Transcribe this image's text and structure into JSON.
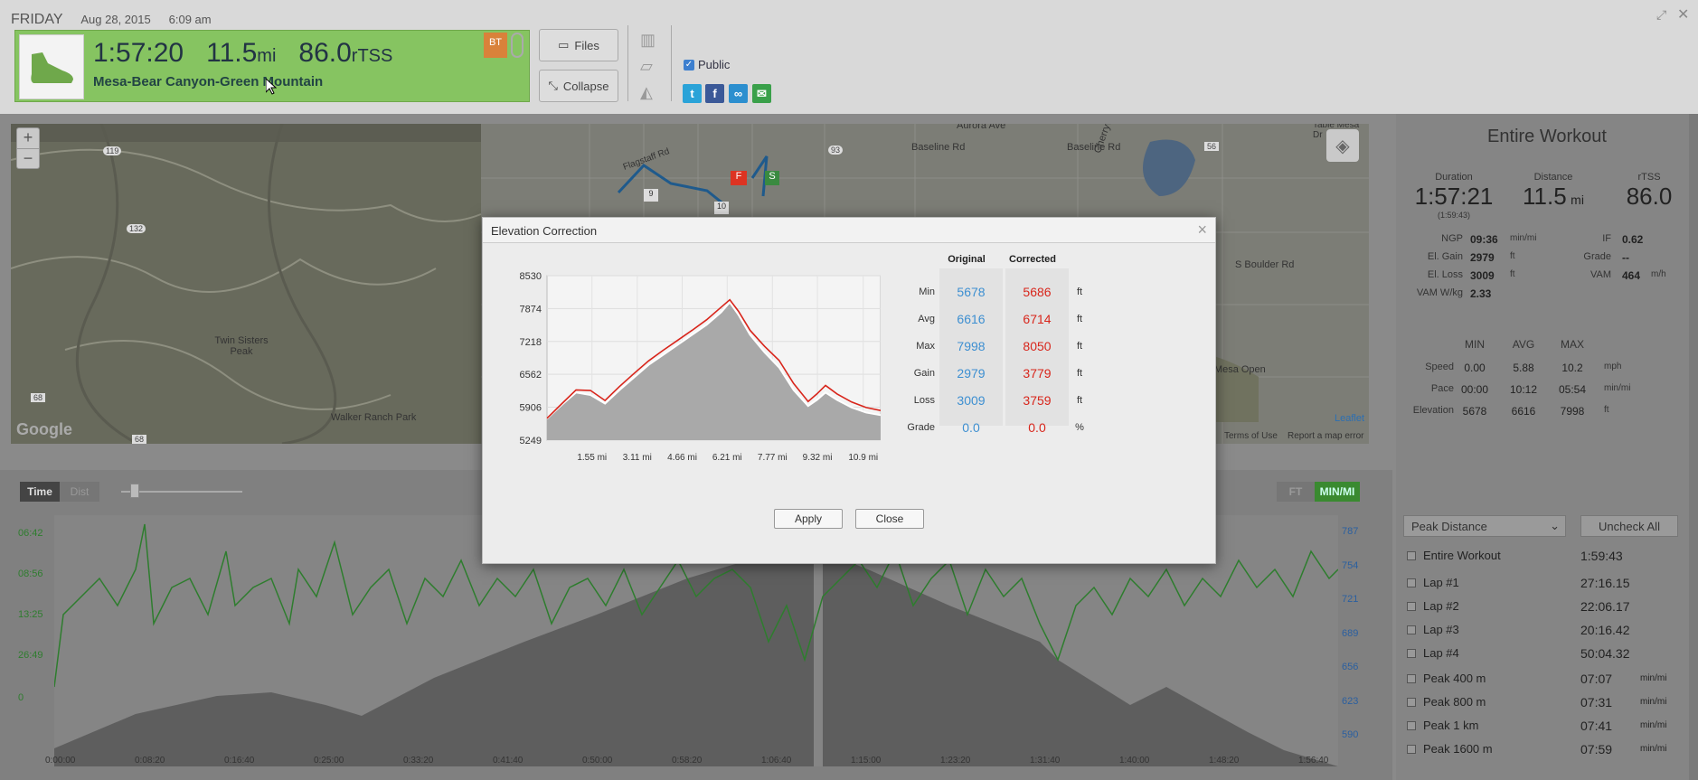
{
  "header": {
    "day": "FRIDAY",
    "date": "Aug 28, 2015",
    "time": "6:09 am",
    "duration": "1:57:20",
    "distance": "11.5",
    "distance_unit": "mi",
    "tss": "86.0",
    "tss_unit": "rTSS",
    "workout_name": "Mesa-Bear Canyon-Green Mountain",
    "bt_badge": "BT",
    "files_label": "Files",
    "collapse_label": "Collapse",
    "public_label": "Public",
    "colors": {
      "panel": "#86c461",
      "twitter": "#2aa3d8",
      "facebook": "#3b5998",
      "link": "#2c8fcf",
      "email": "#3aa04a"
    }
  },
  "map": {
    "zoom_in": "+",
    "zoom_out": "−",
    "places": [
      "Aurora Ave",
      "Baseline Rd",
      "Baseline Rd",
      "Cherryvale Rd",
      "Twin Sisters Peak",
      "Walker Ranch Park",
      "Davidson Mesa Open Space",
      "S Boulder Rd",
      "Flagstaff Rd",
      "Table Mesa Dr"
    ],
    "road_numbers": [
      "119",
      "132",
      "93",
      "56",
      "68",
      "68"
    ],
    "route_marks": [
      "F",
      "S",
      "9",
      "10"
    ],
    "leaflet": "Leaflet",
    "google": "Google",
    "terms": "Terms of Use",
    "report": "Report a map error"
  },
  "controls": {
    "time_label": "Time",
    "dist_label": "Dist",
    "ft_label": "FT",
    "minmi_label": "MIN/MI"
  },
  "graph": {
    "y_left": [
      "06:42",
      "08:56",
      "13:25",
      "26:49",
      "0"
    ],
    "y_right": [
      "787",
      "754",
      "721",
      "689",
      "656",
      "623",
      "590"
    ],
    "x": [
      "0:00:00",
      "0:08:20",
      "0:16:40",
      "0:25:00",
      "0:33:20",
      "0:41:40",
      "0:50:00",
      "0:58:20",
      "1:06:40",
      "1:15:00",
      "1:23:20",
      "1:31:40",
      "1:40:00",
      "1:48:20",
      "1:56:40"
    ]
  },
  "summary": {
    "title": "Entire Workout",
    "duration_label": "Duration",
    "duration": "1:57:21",
    "duration_sub": "(1:59:43)",
    "distance_label": "Distance",
    "distance": "11.5",
    "distance_unit": "mi",
    "rtss_label": "rTSS",
    "rtss": "86.0",
    "metrics": [
      {
        "label": "NGP",
        "value": "09:36",
        "unit": "min/mi",
        "label2": "IF",
        "value2": "0.62",
        "unit2": ""
      },
      {
        "label": "El. Gain",
        "value": "2979",
        "unit": "ft",
        "label2": "Grade",
        "value2": "--",
        "unit2": ""
      },
      {
        "label": "El. Loss",
        "value": "3009",
        "unit": "ft",
        "label2": "VAM",
        "value2": "464",
        "unit2": "m/h"
      },
      {
        "label": "VAM W/kg",
        "value": "2.33",
        "unit": "",
        "label2": "",
        "value2": "",
        "unit2": ""
      }
    ],
    "minmax_headers": [
      "MIN",
      "AVG",
      "MAX"
    ],
    "minmax": [
      {
        "label": "Speed",
        "min": "0.00",
        "avg": "5.88",
        "max": "10.2",
        "unit": "mph"
      },
      {
        "label": "Pace",
        "min": "00:00",
        "avg": "10:12",
        "max": "05:54",
        "unit": "min/mi"
      },
      {
        "label": "Elevation",
        "min": "5678",
        "avg": "6616",
        "max": "7998",
        "unit": "ft"
      }
    ]
  },
  "laps": {
    "select_value": "Peak Distance",
    "uncheck_label": "Uncheck All",
    "items": [
      {
        "name": "Entire Workout",
        "value": "1:59:43",
        "unit": ""
      },
      {
        "name": "Lap #1",
        "value": "27:16.15",
        "unit": ""
      },
      {
        "name": "Lap #2",
        "value": "22:06.17",
        "unit": ""
      },
      {
        "name": "Lap #3",
        "value": "20:16.42",
        "unit": ""
      },
      {
        "name": "Lap #4",
        "value": "50:04.32",
        "unit": ""
      },
      {
        "name": "Peak 400 m",
        "value": "07:07",
        "unit": "min/mi"
      },
      {
        "name": "Peak 800 m",
        "value": "07:31",
        "unit": "min/mi"
      },
      {
        "name": "Peak 1 km",
        "value": "07:41",
        "unit": "min/mi"
      },
      {
        "name": "Peak 1600 m",
        "value": "07:59",
        "unit": "min/mi"
      }
    ]
  },
  "modal": {
    "title": "Elevation Correction",
    "close_x": "×",
    "col_original": "Original",
    "col_corrected": "Corrected",
    "rows": [
      {
        "label": "Min",
        "original": "5678",
        "corrected": "5686",
        "unit": "ft"
      },
      {
        "label": "Avg",
        "original": "6616",
        "corrected": "6714",
        "unit": "ft"
      },
      {
        "label": "Max",
        "original": "7998",
        "corrected": "8050",
        "unit": "ft"
      },
      {
        "label": "Gain",
        "original": "2979",
        "corrected": "3779",
        "unit": "ft"
      },
      {
        "label": "Loss",
        "original": "3009",
        "corrected": "3759",
        "unit": "ft"
      },
      {
        "label": "Grade",
        "original": "0.0",
        "corrected": "0.0",
        "unit": "%"
      }
    ],
    "apply_label": "Apply",
    "close_label": "Close",
    "colors": {
      "original": "#3d8fd1",
      "corrected": "#d8251b"
    }
  },
  "chart_data": {
    "type": "area",
    "title": "",
    "xlabel": "",
    "ylabel": "",
    "x_ticks": [
      "1.55 mi",
      "3.11 mi",
      "4.66 mi",
      "6.21 mi",
      "7.77 mi",
      "9.32 mi",
      "10.9 mi"
    ],
    "y_ticks": [
      5249,
      5906,
      6562,
      7218,
      7874,
      8530
    ],
    "xlim": [
      0,
      11.5
    ],
    "ylim": [
      5249,
      8530
    ],
    "grid": true,
    "x": [
      0,
      0.5,
      1.0,
      1.5,
      2.0,
      2.5,
      3.0,
      3.5,
      4.0,
      4.5,
      5.0,
      5.5,
      6.0,
      6.3,
      6.6,
      7.0,
      7.5,
      8.0,
      8.5,
      9.0,
      9.3,
      9.6,
      10.0,
      10.5,
      11.0,
      11.5
    ],
    "series": [
      {
        "values": [
          5678,
          5950,
          6200,
          6150,
          5980,
          6250,
          6500,
          6750,
          6950,
          7150,
          7350,
          7550,
          7800,
          7998,
          7750,
          7350,
          7000,
          6700,
          6250,
          5930,
          6050,
          6200,
          6050,
          5900,
          5800,
          5750
        ]
      },
      {
        "values": [
          5686,
          5970,
          6250,
          6240,
          6040,
          6320,
          6580,
          6830,
          7040,
          7240,
          7440,
          7650,
          7900,
          8050,
          7820,
          7440,
          7120,
          6840,
          6380,
          6020,
          6170,
          6340,
          6170,
          6010,
          5900,
          5840
        ]
      }
    ]
  }
}
